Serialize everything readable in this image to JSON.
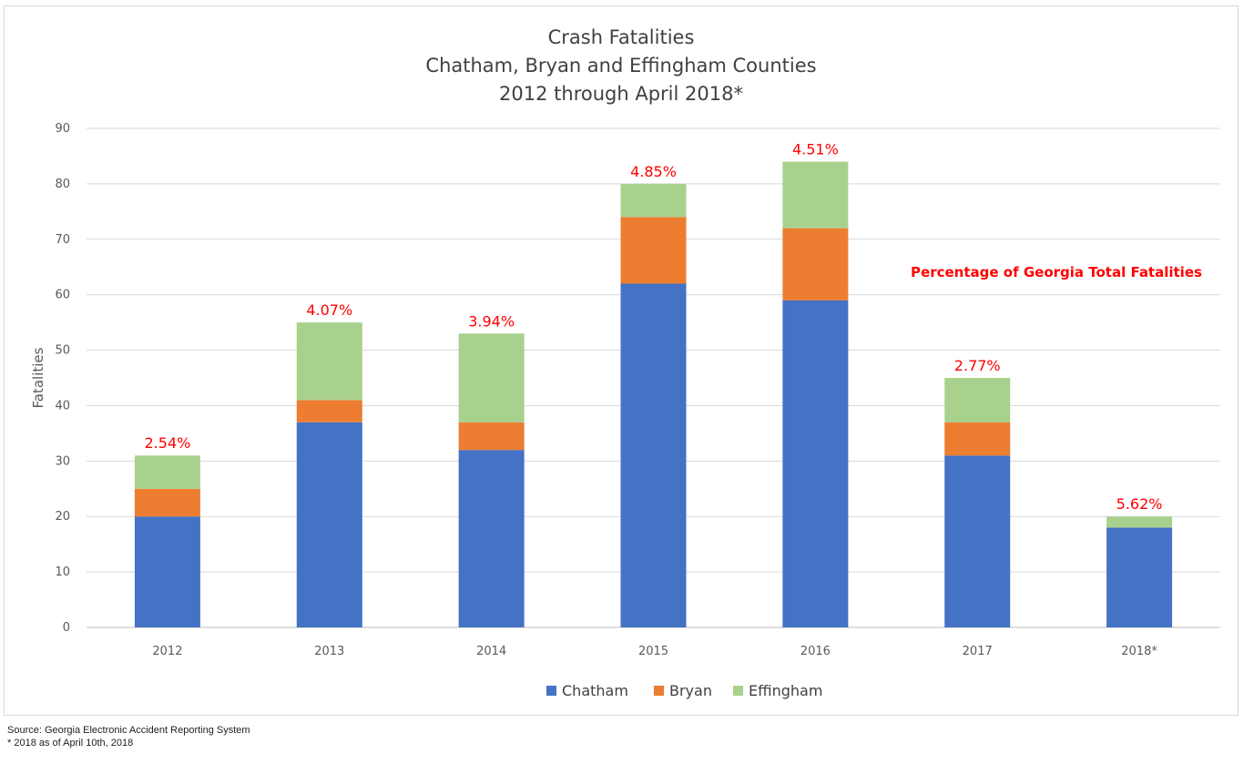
{
  "chart_data": {
    "type": "bar",
    "stacked": true,
    "title": [
      "Crash Fatalities",
      "Chatham, Bryan and Effingham Counties",
      "2012 through April 2018*"
    ],
    "ylabel": "Fatalities",
    "xlabel": "",
    "ylim": [
      0,
      90
    ],
    "yticks": [
      0,
      10,
      20,
      30,
      40,
      50,
      60,
      70,
      80,
      90
    ],
    "grid": true,
    "categories": [
      "2012",
      "2013",
      "2014",
      "2015",
      "2016",
      "2017",
      "2018*"
    ],
    "series": [
      {
        "name": "Chatham",
        "color": "#4472c4",
        "values": [
          20,
          37,
          32,
          62,
          59,
          31,
          18
        ]
      },
      {
        "name": "Bryan",
        "color": "#ed7d31",
        "values": [
          5,
          4,
          5,
          12,
          13,
          6,
          0
        ]
      },
      {
        "name": "Effingham",
        "color": "#a9d18e",
        "values": [
          6,
          14,
          16,
          6,
          12,
          8,
          2
        ]
      }
    ],
    "data_labels": [
      "2.54%",
      "4.07%",
      "3.94%",
      "4.85%",
      "4.51%",
      "2.77%",
      "5.62%"
    ],
    "annotation": "Percentage of Georgia Total Fatalities",
    "legend_position": "bottom"
  },
  "footnotes": {
    "source": "Source:  Georgia Electronic Accident Reporting System",
    "note": "* 2018 as of April 10th, 2018"
  }
}
